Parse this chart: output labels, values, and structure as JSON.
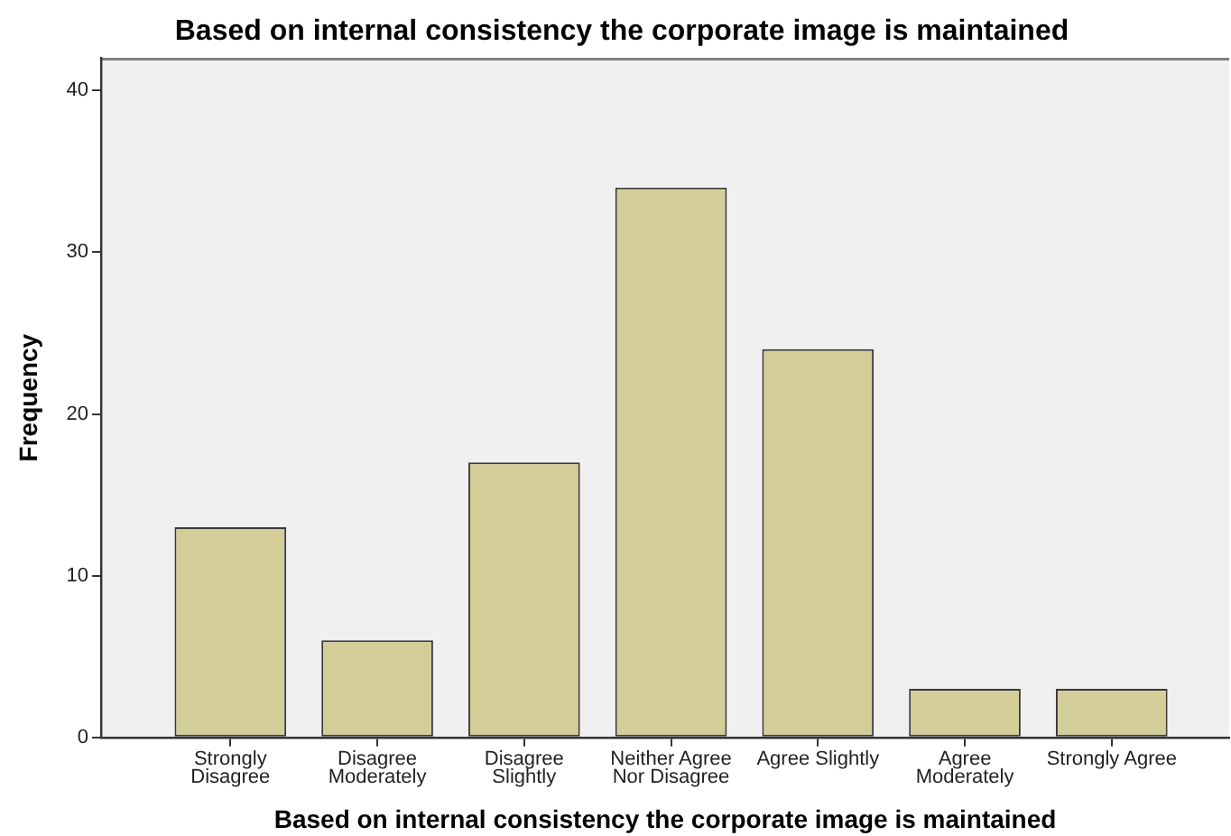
{
  "chart_data": {
    "type": "bar",
    "title": "Based on internal consistency the corporate image is maintained",
    "xlabel": "Based on internal consistency the corporate image is maintained",
    "ylabel": "Frequency",
    "categories": [
      "Strongly Disagree",
      "Disagree Moderately",
      "Disagree Slightly",
      "Neither Agree Nor Disagree",
      "Agree Slightly",
      "Agree Moderately",
      "Strongly Agree"
    ],
    "values": [
      13,
      6,
      17,
      34,
      24,
      3,
      3
    ],
    "color": "#d3ce97",
    "ylim": [
      0,
      42
    ],
    "yticks": [
      0,
      10,
      20,
      30,
      40
    ]
  }
}
